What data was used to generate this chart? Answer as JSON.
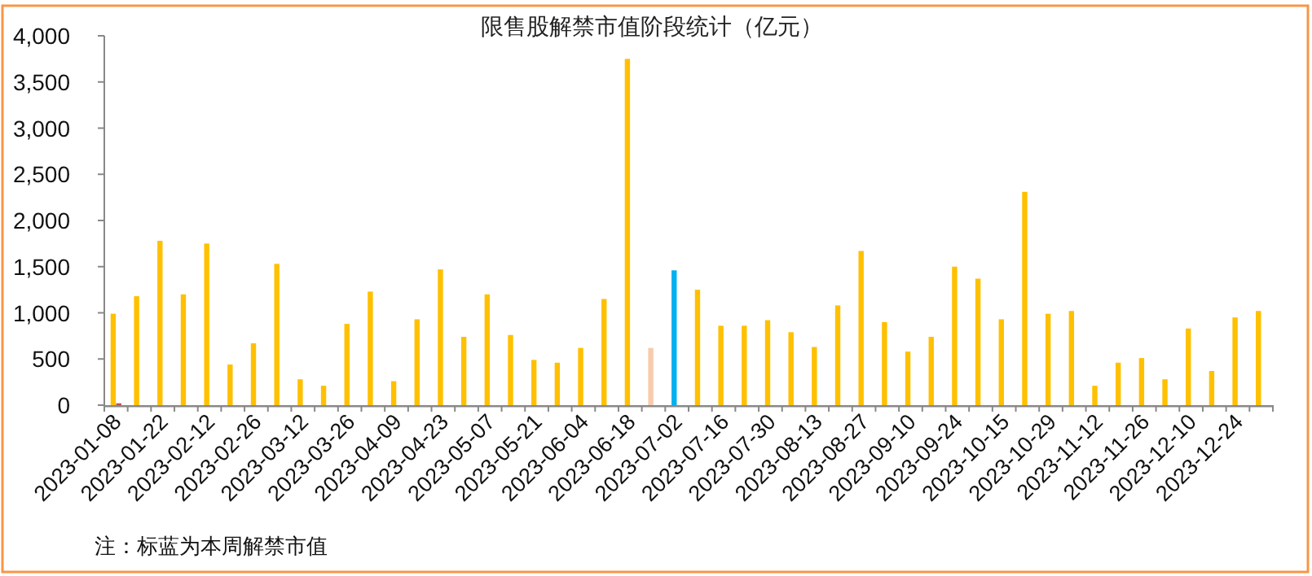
{
  "chart_data": {
    "type": "bar",
    "title": "限售股解禁市值阶段统计（亿元）",
    "categories": [
      "2023-01-08",
      null,
      "2023-01-22",
      null,
      "2023-02-12",
      null,
      "2023-02-26",
      null,
      "2023-03-12",
      null,
      "2023-03-26",
      null,
      "2023-04-09",
      null,
      "2023-04-23",
      null,
      "2023-05-07",
      null,
      "2023-05-21",
      null,
      "2023-06-04",
      null,
      "2023-06-18",
      null,
      "2023-07-02",
      null,
      "2023-07-16",
      null,
      "2023-07-30",
      null,
      "2023-08-13",
      null,
      "2023-08-27",
      null,
      "2023-09-10",
      null,
      "2023-09-24",
      null,
      "2023-10-15",
      null,
      "2023-10-29",
      null,
      "2023-11-12",
      null,
      "2023-11-26",
      null,
      "2023-12-10",
      null,
      "2023-12-24",
      null
    ],
    "series": [
      {
        "values": [
          990,
          1180,
          1780,
          1200,
          1750,
          440,
          670,
          1530,
          280,
          210,
          880,
          1230,
          260,
          930,
          1470,
          740,
          1200,
          760,
          490,
          460,
          620,
          1150,
          3750,
          620,
          1460,
          1250,
          860,
          860,
          920,
          790,
          630,
          1080,
          1670,
          900,
          580,
          740,
          1500,
          1370,
          930,
          2310,
          990,
          1020,
          210,
          460,
          510,
          280,
          830,
          370,
          950,
          1020
        ],
        "colors": [
          "#ffc000",
          "#ffc000",
          "#ffc000",
          "#ffc000",
          "#ffc000",
          "#ffc000",
          "#ffc000",
          "#ffc000",
          "#ffc000",
          "#ffc000",
          "#ffc000",
          "#ffc000",
          "#ffc000",
          "#ffc000",
          "#ffc000",
          "#ffc000",
          "#ffc000",
          "#ffc000",
          "#ffc000",
          "#ffc000",
          "#ffc000",
          "#ffc000",
          "#ffc000",
          "#f8cbad",
          "#00b0f0",
          "#ffc000",
          "#ffc000",
          "#ffc000",
          "#ffc000",
          "#ffc000",
          "#ffc000",
          "#ffc000",
          "#ffc000",
          "#ffc000",
          "#ffc000",
          "#ffc000",
          "#ffc000",
          "#ffc000",
          "#ffc000",
          "#ffc000",
          "#ffc000",
          "#ffc000",
          "#ffc000",
          "#ffc000",
          "#ffc000",
          "#ffc000",
          "#ffc000",
          "#ffc000",
          "#ffc000",
          "#ffc000"
        ]
      },
      {
        "color": "#c0504d",
        "values": [
          20,
          null,
          null,
          null,
          null,
          null,
          null,
          null,
          null,
          null,
          null,
          null,
          null,
          null,
          null,
          null,
          null,
          null,
          null,
          null,
          null,
          null,
          null,
          null,
          null,
          null,
          null,
          null,
          null,
          null,
          null,
          null,
          null,
          null,
          null,
          null,
          null,
          null,
          null,
          null,
          null,
          null,
          null,
          null,
          null,
          null,
          null,
          null,
          null,
          null
        ]
      }
    ],
    "ylim": [
      0,
      4000
    ],
    "yticks": [
      {
        "value": 0,
        "label": "0"
      },
      {
        "value": 500,
        "label": "500"
      },
      {
        "value": 1000,
        "label": "1,000"
      },
      {
        "value": 1500,
        "label": "1,500"
      },
      {
        "value": 2000,
        "label": "2,000"
      },
      {
        "value": 2500,
        "label": "2,500"
      },
      {
        "value": 3000,
        "label": "3,000"
      },
      {
        "value": 3500,
        "label": "3,500"
      },
      {
        "value": 4000,
        "label": "4,000"
      }
    ],
    "grid": false,
    "annotations": [
      "注：标蓝为本周解禁市值"
    ]
  }
}
